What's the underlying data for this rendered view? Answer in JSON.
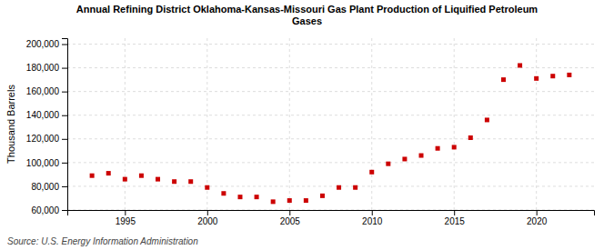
{
  "chart_data": {
    "type": "scatter",
    "title": "Annual Refining District Oklahoma-Kansas-Missouri Gas Plant Production of Liquified Petroleum\nGases",
    "ylabel": "Thousand Barrels",
    "source": "Source: U.S. Energy Information Administration",
    "x": [
      1993,
      1994,
      1995,
      1996,
      1997,
      1998,
      1999,
      2000,
      2001,
      2002,
      2003,
      2004,
      2005,
      2006,
      2007,
      2008,
      2009,
      2010,
      2011,
      2012,
      2013,
      2014,
      2015,
      2016,
      2017,
      2018,
      2019,
      2020,
      2021,
      2022
    ],
    "values": [
      89000,
      91000,
      86000,
      89000,
      86000,
      84000,
      84000,
      79000,
      74000,
      71000,
      71000,
      67000,
      68000,
      68000,
      72000,
      79000,
      79000,
      92000,
      99000,
      103000,
      106000,
      112000,
      113000,
      121000,
      136000,
      170000,
      182000,
      171000,
      173000,
      174000
    ],
    "color": "#cc0000",
    "marker": "square",
    "xlim": [
      1991.5,
      2023.5
    ],
    "xticks": [
      1995,
      2000,
      2005,
      2010,
      2015,
      2020
    ],
    "ylim": [
      60000,
      205000
    ],
    "yticks": [
      {
        "value": 60000,
        "label": "60,000"
      },
      {
        "value": 80000,
        "label": "80,000"
      },
      {
        "value": 100000,
        "label": "100,000"
      },
      {
        "value": 120000,
        "label": "120,000"
      },
      {
        "value": 140000,
        "label": "140,000"
      },
      {
        "value": 160000,
        "label": "160,000"
      },
      {
        "value": 180000,
        "label": "180,000"
      },
      {
        "value": 200000,
        "label": "200,000"
      }
    ],
    "grid": true
  }
}
